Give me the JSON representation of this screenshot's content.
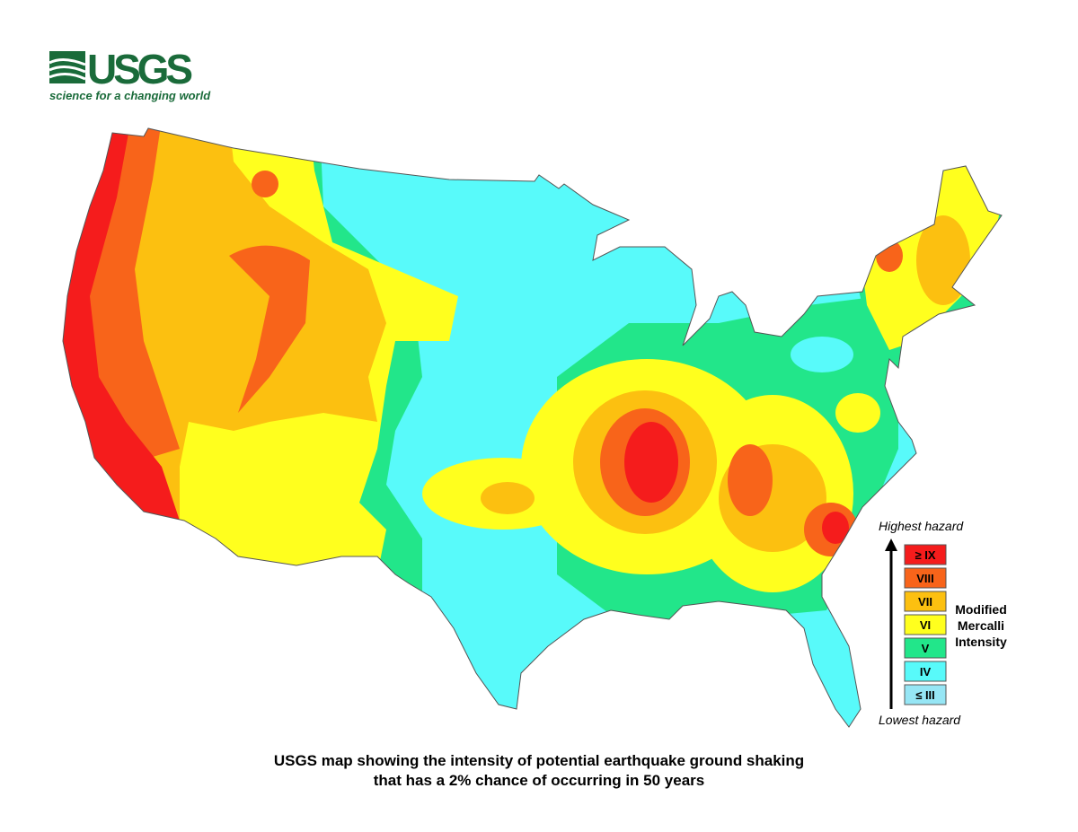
{
  "logo": {
    "name": "USGS",
    "tagline": "science for a changing world"
  },
  "legend": {
    "top_label": "Highest hazard",
    "bottom_label": "Lowest hazard",
    "title_lines": [
      "Modified",
      "Mercalli",
      "Intensity"
    ],
    "items": [
      {
        "label": "≥ IX",
        "color": "#f51c1c"
      },
      {
        "label": "VIII",
        "color": "#f8641a"
      },
      {
        "label": "VII",
        "color": "#fcc010"
      },
      {
        "label": "VI",
        "color": "#ffff1e"
      },
      {
        "label": "V",
        "color": "#22e68a"
      },
      {
        "label": "IV",
        "color": "#58fafa"
      },
      {
        "label": "≤ III",
        "color": "#96e6f5"
      }
    ]
  },
  "caption": {
    "lines": [
      "USGS map showing the intensity of potential earthquake ground shaking",
      "that has a 2% chance of occurring in 50 years"
    ]
  }
}
